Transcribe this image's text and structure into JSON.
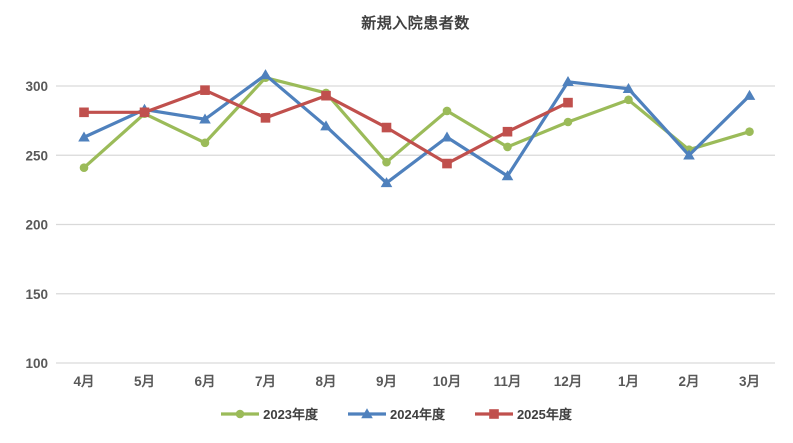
{
  "chart_data": {
    "type": "line",
    "title": "新規入院患者数",
    "categories": [
      "4月",
      "5月",
      "6月",
      "7月",
      "8月",
      "9月",
      "10月",
      "11月",
      "12月",
      "1月",
      "2月",
      "3月"
    ],
    "series": [
      {
        "name": "2023年度",
        "marker": "circle",
        "color": "#9BBB59",
        "values": [
          241,
          280,
          259,
          306,
          295,
          245,
          282,
          256,
          274,
          290,
          254,
          267
        ]
      },
      {
        "name": "2024年度",
        "marker": "triangle",
        "color": "#4F81BD",
        "values": [
          263,
          283,
          276,
          308,
          271,
          230,
          263,
          235,
          303,
          298,
          250,
          293
        ]
      },
      {
        "name": "2025年度",
        "marker": "square",
        "color": "#C0504D",
        "values": [
          281,
          281,
          297,
          277,
          293,
          270,
          244,
          267,
          288,
          null,
          null,
          null
        ]
      }
    ],
    "ylim": [
      100,
      300
    ],
    "yticks": [
      100,
      150,
      200,
      250,
      300
    ],
    "grid": true,
    "gridline_color": "#D9D9D9",
    "axis_text_color": "#595959",
    "title_color": "#404040",
    "legend_text_color": "#3F3F3F",
    "legend_position": "bottom"
  }
}
